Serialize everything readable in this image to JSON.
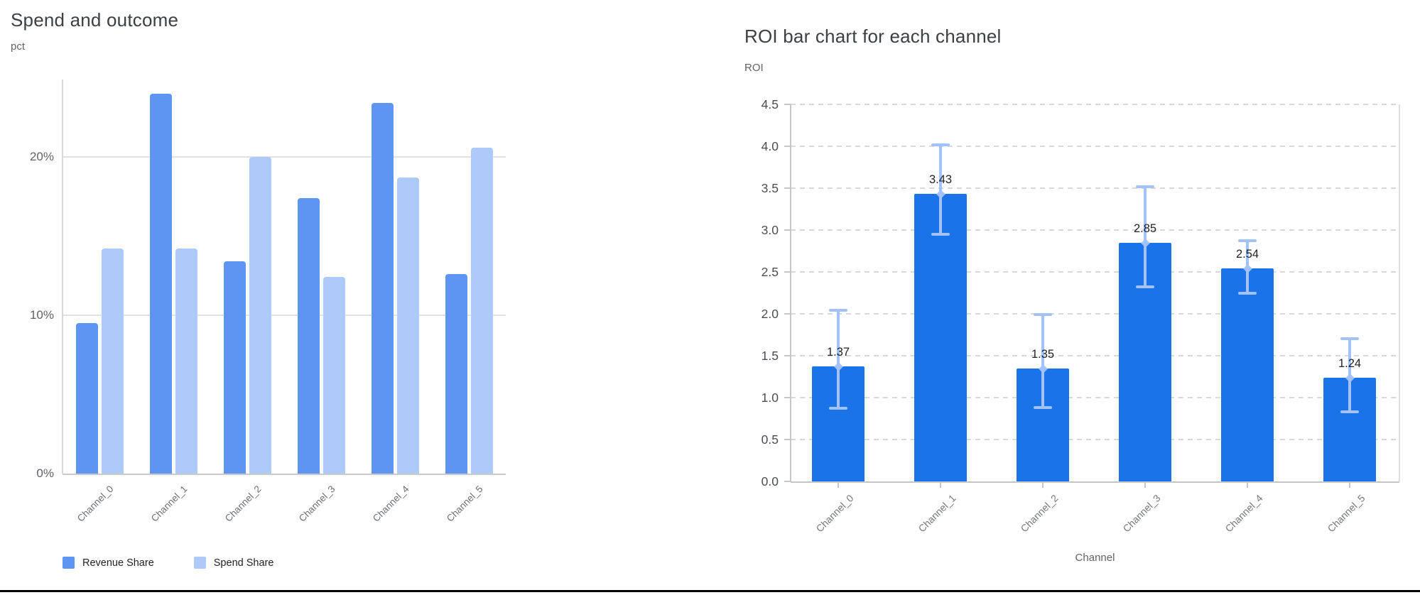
{
  "page": {
    "background": "#ffffff",
    "bottom_rule_color": "#000000"
  },
  "chart_data": [
    {
      "type": "bar",
      "title": "Spend and outcome",
      "xlabel": "",
      "ylabel": "pct",
      "categories": [
        "Channel_0",
        "Channel_1",
        "Channel_2",
        "Channel_3",
        "Channel_4",
        "Channel_5"
      ],
      "series": [
        {
          "name": "Revenue Share",
          "color": "#5e94f2",
          "values": [
            9.5,
            24.0,
            13.4,
            17.4,
            23.4,
            12.6
          ]
        },
        {
          "name": "Spend Share",
          "color": "#aecafa",
          "values": [
            14.2,
            14.2,
            20.0,
            12.4,
            18.7,
            20.6
          ]
        }
      ],
      "unit": "%",
      "yticks": [
        {
          "value": 0,
          "label": "0%"
        },
        {
          "value": 10,
          "label": "10%"
        },
        {
          "value": 20,
          "label": "20%"
        }
      ],
      "ylim": [
        0,
        24.9
      ],
      "grid": "solid",
      "grid_color": "#e2e2e2",
      "axis_color": "#c9c9c9",
      "legend_position": "bottom"
    },
    {
      "type": "bar",
      "title": "ROI bar chart for each channel",
      "xlabel": "Channel",
      "ylabel": "ROI",
      "categories": [
        "Channel_0",
        "Channel_1",
        "Channel_2",
        "Channel_3",
        "Channel_4",
        "Channel_5"
      ],
      "series": [
        {
          "name": "ROI",
          "color": "#1a73e8",
          "values": [
            1.37,
            3.43,
            1.35,
            2.85,
            2.54,
            1.24
          ]
        }
      ],
      "data_labels": [
        "1.37",
        "3.43",
        "1.35",
        "2.85",
        "2.54",
        "1.24"
      ],
      "error_bars": {
        "color": "#a3c3f8",
        "low": [
          0.87,
          2.95,
          0.88,
          2.32,
          2.25,
          0.83
        ],
        "high": [
          2.04,
          4.02,
          1.99,
          3.52,
          2.87,
          1.7
        ]
      },
      "yticks": [
        {
          "value": 0.0,
          "label": "0.0"
        },
        {
          "value": 0.5,
          "label": "0.5"
        },
        {
          "value": 1.0,
          "label": "1.0"
        },
        {
          "value": 1.5,
          "label": "1.5"
        },
        {
          "value": 2.0,
          "label": "2.0"
        },
        {
          "value": 2.5,
          "label": "2.5"
        },
        {
          "value": 3.0,
          "label": "3.0"
        },
        {
          "value": 3.5,
          "label": "3.5"
        },
        {
          "value": 4.0,
          "label": "4.0"
        },
        {
          "value": 4.5,
          "label": "4.5"
        }
      ],
      "ylim": [
        0,
        4.5
      ],
      "grid": "dashed",
      "grid_color": "#d8d8d8",
      "axis_color": "#c6c6c6",
      "plot_border_color": "#dedede",
      "legend_position": "none"
    }
  ]
}
